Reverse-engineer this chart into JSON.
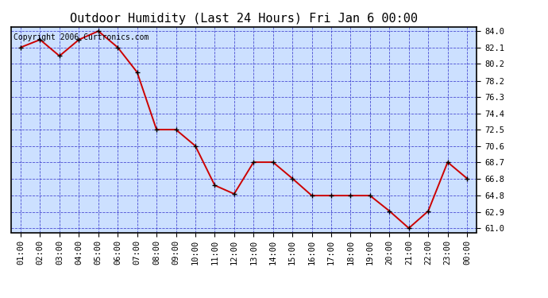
{
  "title": "Outdoor Humidity (Last 24 Hours) Fri Jan 6 00:00",
  "copyright": "Copyright 2006 Curtronics.com",
  "x_labels": [
    "01:00",
    "02:00",
    "03:00",
    "04:00",
    "05:00",
    "06:00",
    "07:00",
    "08:00",
    "09:00",
    "10:00",
    "11:00",
    "12:00",
    "13:00",
    "14:00",
    "15:00",
    "16:00",
    "17:00",
    "18:00",
    "19:00",
    "20:00",
    "21:00",
    "22:00",
    "23:00",
    "00:00"
  ],
  "x_values": [
    1,
    2,
    3,
    4,
    5,
    6,
    7,
    8,
    9,
    10,
    11,
    12,
    13,
    14,
    15,
    16,
    17,
    18,
    19,
    20,
    21,
    22,
    23,
    24
  ],
  "y_values": [
    82.1,
    83.0,
    81.1,
    83.0,
    84.0,
    82.1,
    79.2,
    72.5,
    72.5,
    70.6,
    66.0,
    65.0,
    68.7,
    68.7,
    66.8,
    64.8,
    64.8,
    64.8,
    64.8,
    63.0,
    61.0,
    63.0,
    68.7,
    66.8
  ],
  "y_ticks": [
    61.0,
    62.9,
    64.8,
    66.8,
    68.7,
    70.6,
    72.5,
    74.4,
    76.3,
    78.2,
    80.2,
    82.1,
    84.0
  ],
  "ylim_min": 60.5,
  "ylim_max": 84.5,
  "xlim_min": 0.5,
  "xlim_max": 24.5,
  "line_color": "#cc0000",
  "plot_bg_color": "#cce0ff",
  "fig_bg_color": "#ffffff",
  "grid_color": "#3333cc",
  "title_fontsize": 11,
  "tick_fontsize": 7.5,
  "copyright_fontsize": 7
}
